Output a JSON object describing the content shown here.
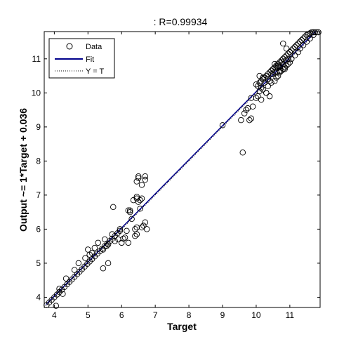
{
  "chart_data": {
    "type": "scatter",
    "title": ": R=0.99934",
    "xlabel": "Target",
    "ylabel": "Output ~= 1*Target + 0.036",
    "xlim": [
      3.7,
      11.9
    ],
    "ylim": [
      3.7,
      11.8
    ],
    "xticks": [
      4,
      5,
      6,
      7,
      8,
      9,
      10,
      11
    ],
    "yticks": [
      4,
      5,
      6,
      7,
      8,
      9,
      10,
      11
    ],
    "grid": false,
    "legend_position": "top-left",
    "fit": {
      "slope": 1,
      "intercept": 0.036
    },
    "series": [
      {
        "name": "Data",
        "marker": "circle",
        "color": "#000000",
        "x": [
          3.77,
          3.85,
          3.92,
          4.0,
          4.08,
          4.15,
          4.22,
          4.3,
          4.38,
          4.45,
          4.52,
          4.6,
          4.68,
          4.75,
          4.82,
          4.9,
          4.98,
          5.05,
          5.12,
          5.2,
          5.28,
          5.35,
          5.42,
          5.5,
          5.58,
          5.65,
          5.72,
          5.8,
          5.88,
          5.95,
          4.15,
          4.35,
          4.6,
          4.72,
          4.92,
          5.05,
          5.2,
          5.3,
          5.45,
          5.5,
          5.55,
          5.6,
          5.72,
          5.8,
          5.9,
          6.0,
          6.05,
          5.95,
          6.15,
          6.2,
          6.25,
          6.3,
          6.35,
          6.4,
          6.45,
          6.5,
          6.55,
          6.6,
          6.65,
          6.7,
          6.75,
          6.5,
          6.6,
          6.7,
          6.45,
          6.5,
          6.7,
          6.6,
          5.75,
          6.25,
          6.45,
          6.55,
          6.2,
          6.1,
          6.4,
          6.45,
          4.05,
          4.25,
          5.0,
          5.12,
          5.6,
          5.45,
          6.45,
          9.0,
          9.6,
          9.55,
          9.75,
          9.7,
          9.8,
          9.65,
          9.9,
          9.85,
          10.0,
          10.05,
          10.1,
          10.15,
          10.2,
          10.25,
          10.3,
          10.35,
          10.4,
          10.45,
          10.5,
          10.55,
          10.6,
          10.65,
          10.7,
          10.75,
          10.8,
          10.85,
          10.9,
          10.95,
          11.0,
          11.05,
          11.1,
          11.15,
          11.2,
          11.25,
          11.3,
          11.35,
          11.4,
          11.45,
          11.5,
          11.55,
          11.6,
          11.65,
          11.7,
          11.75,
          11.8,
          11.85,
          10.5,
          10.6,
          10.7,
          10.8,
          10.9,
          10.55,
          10.65,
          10.75,
          10.85,
          10.95,
          10.35,
          10.25,
          10.15,
          10.45,
          10.2,
          10.3,
          10.1,
          10.4,
          10.7,
          10.8,
          10.55,
          10.65,
          10.9,
          11.0,
          10.75,
          10.85,
          10.6,
          10.45,
          10.95,
          10.35,
          10.0,
          9.85,
          10.1,
          10.2,
          10.4,
          10.05,
          10.55,
          10.3,
          10.15,
          11.05,
          11.15,
          11.25,
          11.3,
          11.4,
          11.5,
          11.6,
          11.7,
          10.8,
          10.9,
          11.0,
          10.7,
          10.6,
          10.5
        ],
        "y": [
          3.77,
          3.85,
          3.92,
          4.0,
          4.08,
          4.15,
          4.22,
          4.3,
          4.38,
          4.45,
          4.52,
          4.6,
          4.68,
          4.75,
          4.82,
          4.9,
          4.98,
          5.05,
          5.12,
          5.2,
          5.28,
          5.35,
          5.42,
          5.5,
          5.58,
          5.65,
          5.72,
          5.8,
          5.88,
          5.95,
          4.25,
          4.55,
          4.8,
          5.0,
          5.15,
          5.25,
          5.45,
          5.6,
          5.4,
          5.7,
          5.5,
          5.55,
          5.85,
          5.65,
          5.7,
          5.6,
          5.72,
          6.0,
          5.95,
          6.55,
          6.5,
          6.3,
          6.85,
          6.0,
          6.9,
          6.8,
          6.6,
          6.05,
          6.1,
          6.2,
          6.0,
          7.55,
          7.3,
          7.45,
          7.4,
          7.5,
          7.55,
          6.9,
          6.65,
          6.55,
          6.95,
          6.85,
          5.6,
          5.75,
          5.8,
          5.85,
          3.75,
          4.1,
          5.4,
          5.3,
          5.0,
          4.85,
          6.05,
          9.05,
          8.25,
          9.2,
          9.55,
          9.5,
          9.2,
          9.4,
          9.6,
          9.25,
          9.85,
          10.2,
          10.3,
          10.35,
          10.4,
          10.45,
          10.5,
          10.55,
          10.6,
          10.65,
          10.7,
          10.75,
          10.8,
          10.85,
          10.9,
          10.95,
          11.0,
          11.05,
          11.1,
          11.15,
          11.2,
          11.25,
          11.3,
          11.35,
          11.4,
          11.45,
          11.5,
          11.55,
          11.6,
          11.65,
          11.7,
          11.72,
          11.75,
          11.78,
          11.8,
          11.8,
          11.8,
          11.8,
          10.7,
          10.75,
          10.65,
          10.85,
          10.95,
          10.6,
          10.8,
          10.9,
          10.75,
          10.85,
          10.4,
          10.3,
          10.15,
          10.55,
          10.45,
          10.0,
          10.05,
          9.9,
          10.6,
          10.7,
          10.35,
          10.5,
          10.8,
          10.9,
          10.65,
          10.7,
          10.45,
          10.3,
          11.0,
          10.2,
          10.25,
          9.85,
          10.5,
          10.1,
          10.35,
          9.9,
          10.85,
          10.0,
          9.8,
          11.0,
          11.1,
          11.2,
          11.3,
          11.4,
          11.5,
          11.6,
          11.7,
          11.45,
          11.3,
          11.2,
          10.75,
          10.6,
          10.55
        ]
      }
    ],
    "legend": [
      {
        "label": "Data",
        "style": "circle"
      },
      {
        "label": "Fit",
        "style": "solid-line",
        "color": "#00008b"
      },
      {
        "label": "Y = T",
        "style": "dotted-line",
        "color": "#000000"
      }
    ]
  }
}
